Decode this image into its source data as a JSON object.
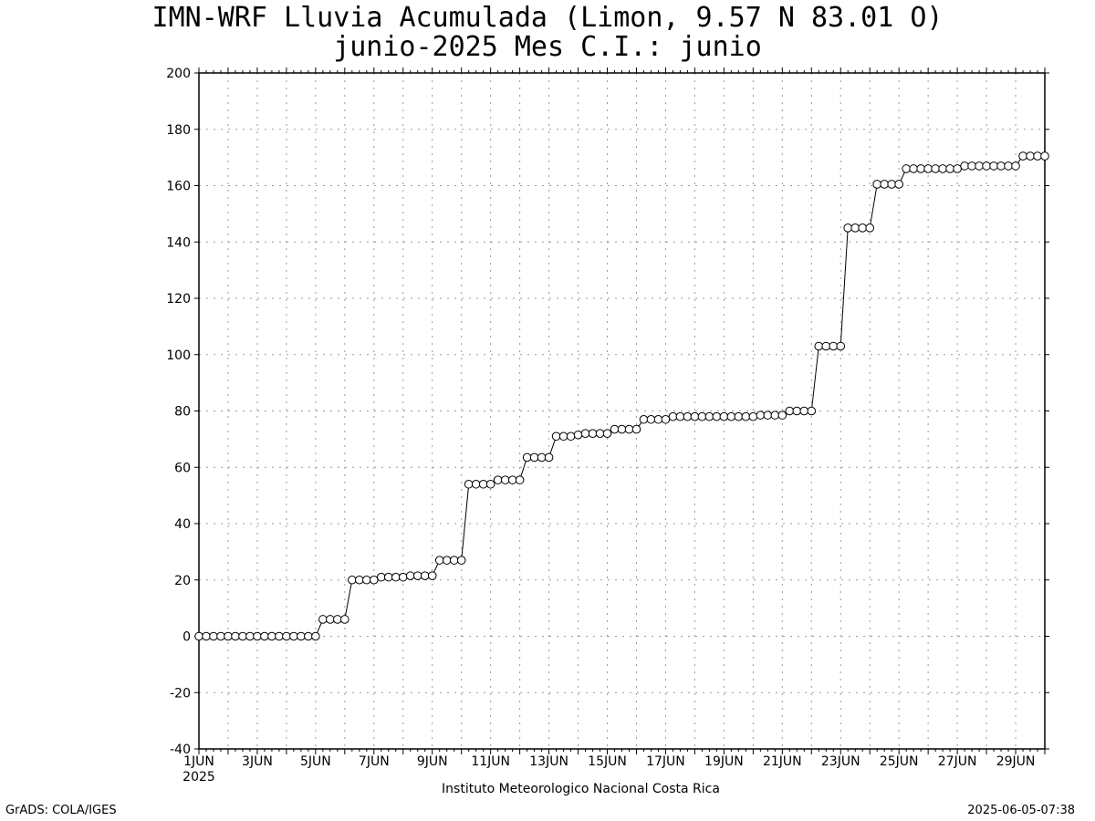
{
  "title_line1": "IMN-WRF  Lluvia Acumulada (Limon, 9.57  N 83.01  O)",
  "title_line2": "junio-2025 Mes C.I.: junio",
  "footer_left": "GrADS: COLA/IGES",
  "footer_right": "2025-06-05-07:38",
  "credit": "Instituto Meteorologico Nacional Costa Rica",
  "chart_data": {
    "type": "line",
    "title": "IMN-WRF  Lluvia Acumulada (Limon, 9.57  N 83.01  O)",
    "subtitle": "junio-2025 Mes C.I.: junio",
    "xlabel": "",
    "ylabel": "",
    "ylim": [
      -40,
      200
    ],
    "yticks": [
      -40,
      -20,
      0,
      20,
      40,
      60,
      80,
      100,
      120,
      140,
      160,
      180,
      200
    ],
    "xlim_days": [
      1,
      30
    ],
    "xticks": [
      {
        "day": 1,
        "label": "1JUN"
      },
      {
        "day": 3,
        "label": "3JUN"
      },
      {
        "day": 5,
        "label": "5JUN"
      },
      {
        "day": 7,
        "label": "7JUN"
      },
      {
        "day": 9,
        "label": "9JUN"
      },
      {
        "day": 11,
        "label": "11JUN"
      },
      {
        "day": 13,
        "label": "13JUN"
      },
      {
        "day": 15,
        "label": "15JUN"
      },
      {
        "day": 17,
        "label": "17JUN"
      },
      {
        "day": 19,
        "label": "19JUN"
      },
      {
        "day": 21,
        "label": "21JUN"
      },
      {
        "day": 23,
        "label": "23JUN"
      },
      {
        "day": 25,
        "label": "25JUN"
      },
      {
        "day": 27,
        "label": "27JUN"
      },
      {
        "day": 29,
        "label": "29JUN"
      }
    ],
    "xtick_year": "2025",
    "grid": true,
    "marker": "open-circle",
    "series": [
      {
        "values": [
          [
            1.0,
            0
          ],
          [
            1.25,
            0
          ],
          [
            1.5,
            0
          ],
          [
            1.75,
            0
          ],
          [
            2.0,
            0
          ],
          [
            2.25,
            0
          ],
          [
            2.5,
            0
          ],
          [
            2.75,
            0
          ],
          [
            3.0,
            0
          ],
          [
            3.25,
            0
          ],
          [
            3.5,
            0
          ],
          [
            3.75,
            0
          ],
          [
            4.0,
            0
          ],
          [
            4.25,
            0
          ],
          [
            4.5,
            0
          ],
          [
            4.75,
            0
          ],
          [
            5.0,
            0
          ],
          [
            5.25,
            6
          ],
          [
            5.5,
            6
          ],
          [
            5.75,
            6
          ],
          [
            6.0,
            6
          ],
          [
            6.25,
            20
          ],
          [
            6.5,
            20
          ],
          [
            6.75,
            20
          ],
          [
            7.0,
            20
          ],
          [
            7.25,
            21
          ],
          [
            7.5,
            21
          ],
          [
            7.75,
            21
          ],
          [
            8.0,
            21
          ],
          [
            8.25,
            21.5
          ],
          [
            8.5,
            21.5
          ],
          [
            8.75,
            21.5
          ],
          [
            9.0,
            21.5
          ],
          [
            9.25,
            27
          ],
          [
            9.5,
            27
          ],
          [
            9.75,
            27
          ],
          [
            10.0,
            27
          ],
          [
            10.25,
            54
          ],
          [
            10.5,
            54
          ],
          [
            10.75,
            54
          ],
          [
            11.0,
            54
          ],
          [
            11.25,
            55.5
          ],
          [
            11.5,
            55.5
          ],
          [
            11.75,
            55.5
          ],
          [
            12.0,
            55.5
          ],
          [
            12.25,
            63.5
          ],
          [
            12.5,
            63.5
          ],
          [
            12.75,
            63.5
          ],
          [
            13.0,
            63.5
          ],
          [
            13.25,
            71
          ],
          [
            13.5,
            71
          ],
          [
            13.75,
            71
          ],
          [
            14.0,
            71.5
          ],
          [
            14.25,
            72
          ],
          [
            14.5,
            72
          ],
          [
            14.75,
            72
          ],
          [
            15.0,
            72
          ],
          [
            15.25,
            73.5
          ],
          [
            15.5,
            73.5
          ],
          [
            15.75,
            73.5
          ],
          [
            16.0,
            73.5
          ],
          [
            16.25,
            77
          ],
          [
            16.5,
            77
          ],
          [
            16.75,
            77
          ],
          [
            17.0,
            77
          ],
          [
            17.25,
            78
          ],
          [
            17.5,
            78
          ],
          [
            17.75,
            78
          ],
          [
            18.0,
            78
          ],
          [
            18.25,
            78
          ],
          [
            18.5,
            78
          ],
          [
            18.75,
            78
          ],
          [
            19.0,
            78
          ],
          [
            19.25,
            78
          ],
          [
            19.5,
            78
          ],
          [
            19.75,
            78
          ],
          [
            20.0,
            78
          ],
          [
            20.25,
            78.5
          ],
          [
            20.5,
            78.5
          ],
          [
            20.75,
            78.5
          ],
          [
            21.0,
            78.5
          ],
          [
            21.25,
            80
          ],
          [
            21.5,
            80
          ],
          [
            21.75,
            80
          ],
          [
            22.0,
            80
          ],
          [
            22.25,
            103
          ],
          [
            22.5,
            103
          ],
          [
            22.75,
            103
          ],
          [
            23.0,
            103
          ],
          [
            23.25,
            145
          ],
          [
            23.5,
            145
          ],
          [
            23.75,
            145
          ],
          [
            24.0,
            145
          ],
          [
            24.25,
            160.5
          ],
          [
            24.5,
            160.5
          ],
          [
            24.75,
            160.5
          ],
          [
            25.0,
            160.5
          ],
          [
            25.25,
            166
          ],
          [
            25.5,
            166
          ],
          [
            25.75,
            166
          ],
          [
            26.0,
            166
          ],
          [
            26.25,
            166
          ],
          [
            26.5,
            166
          ],
          [
            26.75,
            166
          ],
          [
            27.0,
            166
          ],
          [
            27.25,
            167
          ],
          [
            27.5,
            167
          ],
          [
            27.75,
            167
          ],
          [
            28.0,
            167
          ],
          [
            28.25,
            167
          ],
          [
            28.5,
            167
          ],
          [
            28.75,
            167
          ],
          [
            29.0,
            167
          ],
          [
            29.25,
            170.5
          ],
          [
            29.5,
            170.5
          ],
          [
            29.75,
            170.5
          ],
          [
            30.0,
            170.5
          ]
        ]
      }
    ]
  }
}
